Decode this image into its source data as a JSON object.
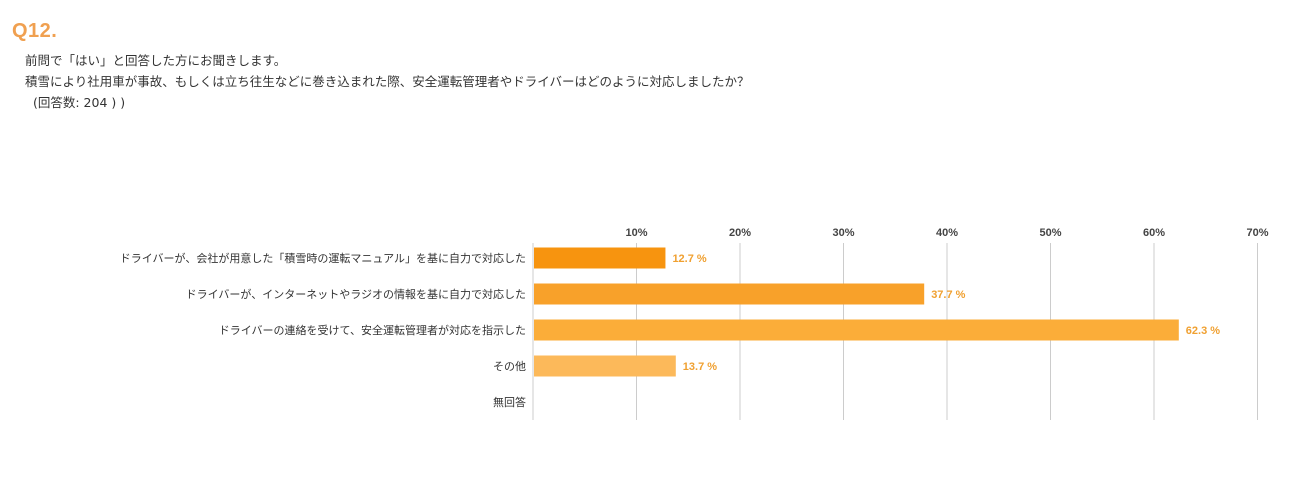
{
  "question": {
    "number": "Q12.",
    "lines": [
      "前問で「はい」と回答した方にお聞きします。",
      "積雪により社用車が事故、もしくは立ち往生などに巻き込まれた際、安全運転管理者やドライバーはどのように対応しましたか？"
    ],
    "count": "(回答数: 204 ) )"
  },
  "chart_data": {
    "type": "bar",
    "orientation": "horizontal",
    "categories": [
      "ドライバーが、会社が用意した「積雪時の運転マニュアル」を基に自力で対応した",
      "ドライバーが、インターネットやラジオの情報を基に自力で対応した",
      "ドライバーの連絡を受けて、安全運転管理者が対応を指示した",
      "その他",
      "無回答"
    ],
    "values": [
      12.7,
      37.7,
      62.3,
      13.7,
      null
    ],
    "value_labels": [
      "12.7 %",
      "37.7 %",
      "62.3 %",
      "13.7 %",
      ""
    ],
    "x_ticks": [
      "10%",
      "20%",
      "30%",
      "40%",
      "50%",
      "60%",
      "70%"
    ],
    "xlim": [
      0,
      70
    ],
    "grid": true,
    "colors": {
      "bars": [
        "#f7940f",
        "#f8a12a",
        "#fbad39",
        "#fcb95a",
        "#fcb95a"
      ],
      "value_label": "#f0a030",
      "grid": "#cccccc",
      "question_number": "#f0a050"
    }
  }
}
